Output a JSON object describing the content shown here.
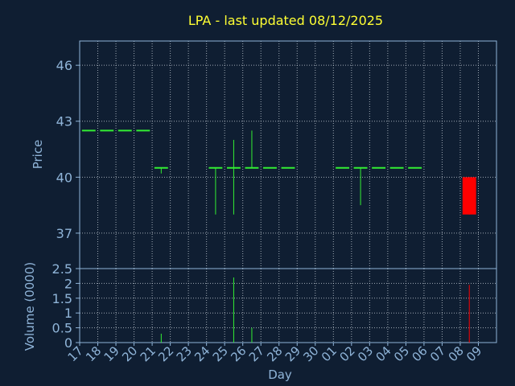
{
  "chart_data": {
    "type": "candlestick",
    "title": "LPA - last updated 08/12/2025",
    "xlabel": "Day",
    "price_panel": {
      "ylabel": "Price",
      "ylim": [
        35.1,
        47.3
      ],
      "yticks": [
        "37",
        "40",
        "43",
        "46"
      ],
      "grid": true
    },
    "volume_panel": {
      "ylabel": "Volume (0000)",
      "ylim": [
        0,
        2.5
      ],
      "yticks": [
        "0",
        "0.5",
        "1",
        "1.5",
        "2",
        "2.5"
      ],
      "grid": true
    },
    "x_tick_labels": [
      "17",
      "18",
      "19",
      "20",
      "21",
      "22",
      "23",
      "24",
      "25",
      "26",
      "27",
      "28",
      "29",
      "30",
      "01",
      "02",
      "03",
      "04",
      "05",
      "06",
      "07",
      "08",
      "09"
    ],
    "candles": [
      {
        "day": "17",
        "open": 42.5,
        "high": 42.5,
        "low": 42.5,
        "close": 42.5,
        "volume": 0
      },
      {
        "day": "18",
        "open": 42.5,
        "high": 42.5,
        "low": 42.5,
        "close": 42.5,
        "volume": 0
      },
      {
        "day": "19",
        "open": 42.5,
        "high": 42.5,
        "low": 42.5,
        "close": 42.5,
        "volume": 0
      },
      {
        "day": "20",
        "open": 42.5,
        "high": 42.5,
        "low": 42.5,
        "close": 42.5,
        "volume": 0
      },
      {
        "day": "21",
        "open": 40.5,
        "high": 40.5,
        "low": 40.2,
        "close": 40.5,
        "volume": 0.3
      },
      {
        "day": "24",
        "open": 40.5,
        "high": 40.5,
        "low": 38.0,
        "close": 40.5,
        "volume": 0
      },
      {
        "day": "25",
        "open": 40.5,
        "high": 42.0,
        "low": 38.0,
        "close": 40.5,
        "volume": 2.2
      },
      {
        "day": "26",
        "open": 40.5,
        "high": 42.5,
        "low": 40.5,
        "close": 40.5,
        "volume": 0.5
      },
      {
        "day": "27",
        "open": 40.5,
        "high": 40.5,
        "low": 40.5,
        "close": 40.5,
        "volume": 0
      },
      {
        "day": "28",
        "open": 40.5,
        "high": 40.5,
        "low": 40.5,
        "close": 40.5,
        "volume": 0
      },
      {
        "day": "01",
        "open": 40.5,
        "high": 40.5,
        "low": 40.5,
        "close": 40.5,
        "volume": 0
      },
      {
        "day": "02",
        "open": 40.5,
        "high": 40.5,
        "low": 38.5,
        "close": 40.5,
        "volume": 0
      },
      {
        "day": "03",
        "open": 40.5,
        "high": 40.5,
        "low": 40.5,
        "close": 40.5,
        "volume": 0
      },
      {
        "day": "04",
        "open": 40.5,
        "high": 40.5,
        "low": 40.5,
        "close": 40.5,
        "volume": 0
      },
      {
        "day": "05",
        "open": 40.5,
        "high": 40.5,
        "low": 40.5,
        "close": 40.5,
        "volume": 0
      },
      {
        "day": "08",
        "open": 40.0,
        "high": 40.0,
        "low": 38.0,
        "close": 38.0,
        "volume": 1.95
      }
    ],
    "colors": {
      "background": "#0f1e32",
      "up": "#33ee33",
      "down": "#ff0000",
      "axis": "#8fb4d8",
      "title": "#ffff33"
    }
  }
}
